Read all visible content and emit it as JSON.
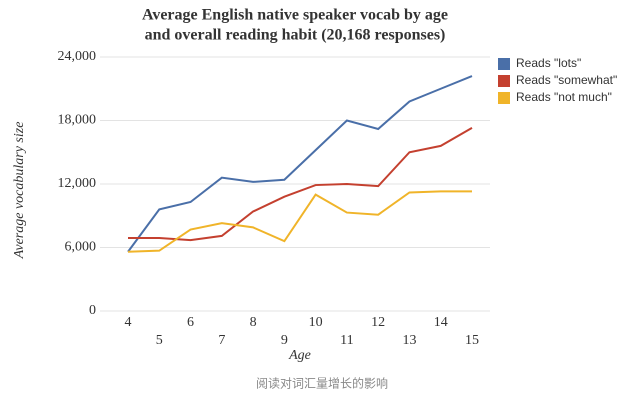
{
  "chart_data": {
    "type": "line",
    "title": [
      "Average English native speaker vocab by age",
      "and overall reading habit (20,168 responses)"
    ],
    "x_label": "Age",
    "y_label": "Average vocabulary size",
    "x": [
      4,
      5,
      6,
      7,
      8,
      9,
      10,
      11,
      12,
      13,
      14,
      15
    ],
    "xlim": [
      4,
      15
    ],
    "xticks": [
      4,
      5,
      6,
      7,
      8,
      9,
      10,
      11,
      12,
      13,
      14,
      15
    ],
    "ylim": [
      0,
      24000
    ],
    "yticks": [
      0,
      {
        "value": 6000,
        "label": "6,000"
      },
      {
        "value": 12000,
        "label": "12,000"
      },
      {
        "value": 18000,
        "label": "18,000"
      },
      {
        "value": 24000,
        "label": "24,000"
      }
    ],
    "grid": true,
    "legend": "right",
    "series": [
      {
        "name": "Reads \"lots\"",
        "color": "#4a6fa8",
        "values": [
          5600,
          9600,
          10300,
          12600,
          12200,
          12400,
          15200,
          18000,
          17200,
          19800,
          21000,
          22200
        ]
      },
      {
        "name": "Reads \"somewhat\"",
        "color": "#c4402f",
        "values": [
          6900,
          6900,
          6700,
          7100,
          9400,
          10800,
          11900,
          12000,
          11800,
          15000,
          15600,
          17300
        ]
      },
      {
        "name": "Reads \"not much\"",
        "color": "#f0b429",
        "values": [
          5600,
          5700,
          7700,
          8300,
          7900,
          6600,
          11000,
          9300,
          9100,
          11200,
          11300,
          11300
        ]
      }
    ],
    "caption": "阅读对词汇量增长的影响"
  }
}
